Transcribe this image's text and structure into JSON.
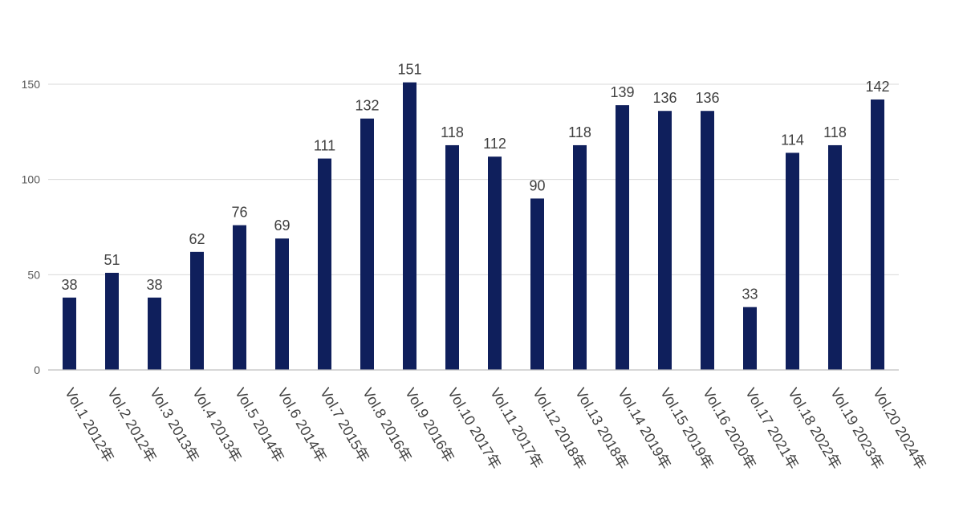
{
  "chart_data": {
    "type": "bar",
    "categories": [
      "Vol.1 2012年",
      "Vol.2 2012年",
      "Vol.3 2013年",
      "Vol.4 2013年",
      "Vol.5 2014年",
      "Vol.6 2014年",
      "Vol.7 2015年",
      "Vol.8 2016年",
      "Vol.9 2016年",
      "Vol.10 2017年",
      "Vol.11 2017年",
      "Vol.12 2018年",
      "Vol.13 2018年",
      "Vol.14 2019年",
      "Vol.15 2019年",
      "Vol.16 2020年",
      "Vol.17 2021年",
      "Vol.18 2022年",
      "Vol.19 2023年",
      "Vol.20 2024年"
    ],
    "values": [
      38,
      51,
      38,
      62,
      76,
      69,
      111,
      132,
      151,
      118,
      112,
      90,
      118,
      139,
      136,
      136,
      33,
      114,
      118,
      142
    ],
    "ylim": [
      0,
      150
    ],
    "yticks": [
      0,
      50,
      100,
      150
    ],
    "grid": true,
    "legend": "none",
    "bar_color": "#0f1f5c",
    "title": "",
    "xlabel": "",
    "ylabel": ""
  }
}
